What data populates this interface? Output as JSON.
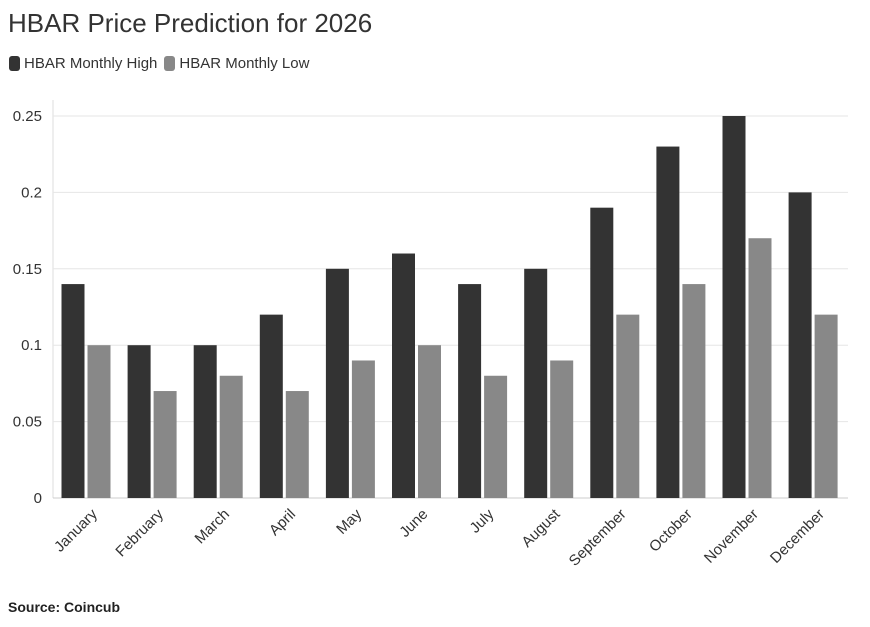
{
  "chart_data": {
    "type": "bar",
    "title": "HBAR Price Prediction for 2026",
    "categories": [
      "January",
      "February",
      "March",
      "April",
      "May",
      "June",
      "July",
      "August",
      "September",
      "October",
      "November",
      "December"
    ],
    "series": [
      {
        "name": "HBAR Monthly High",
        "color": "#333333",
        "values": [
          0.14,
          0.1,
          0.1,
          0.12,
          0.15,
          0.16,
          0.14,
          0.15,
          0.19,
          0.23,
          0.25,
          0.2
        ]
      },
      {
        "name": "HBAR Monthly Low",
        "color": "#888888",
        "values": [
          0.1,
          0.07,
          0.08,
          0.07,
          0.09,
          0.1,
          0.08,
          0.09,
          0.12,
          0.14,
          0.17,
          0.12
        ]
      }
    ],
    "y_ticks": [
      "0",
      "0.05",
      "0.1",
      "0.15",
      "0.2",
      "0.25"
    ],
    "ylim": [
      0,
      0.25
    ],
    "grid": true,
    "legend_position": "top-left"
  },
  "source": "Source: Coincub"
}
